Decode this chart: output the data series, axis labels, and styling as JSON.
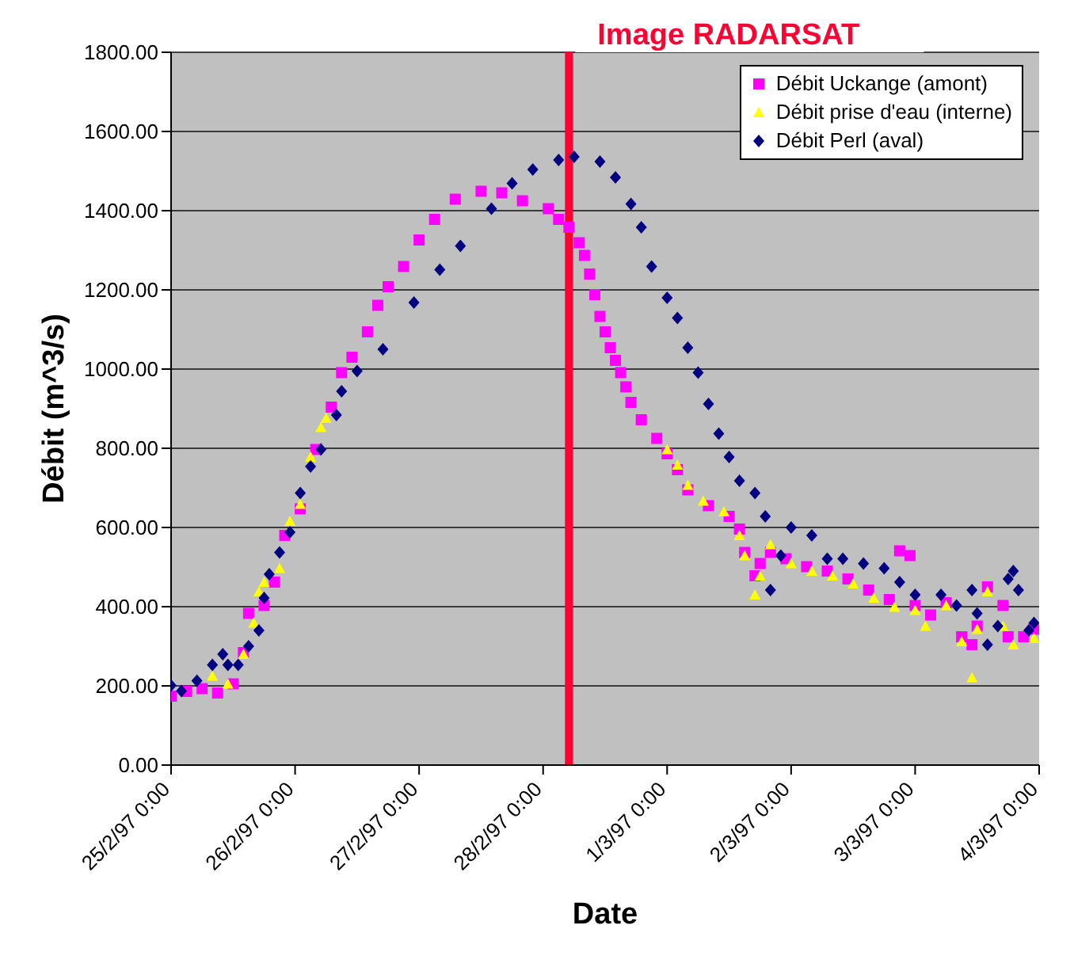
{
  "chart_data": {
    "type": "scatter",
    "xlabel": "Date",
    "ylabel": "Débit (m^3/s)",
    "xlim": [
      "1997-02-25T00:00",
      "1997-03-04T00:00"
    ],
    "xticks": [
      {
        "value": "1997-02-25T00:00",
        "label": "25/2/97 0:00"
      },
      {
        "value": "1997-02-26T00:00",
        "label": "26/2/97 0:00"
      },
      {
        "value": "1997-02-27T00:00",
        "label": "27/2/97 0:00"
      },
      {
        "value": "1997-02-28T00:00",
        "label": "28/2/97 0:00"
      },
      {
        "value": "1997-03-01T00:00",
        "label": "1/3/97 0:00"
      },
      {
        "value": "1997-03-02T00:00",
        "label": "2/3/97 0:00"
      },
      {
        "value": "1997-03-03T00:00",
        "label": "3/3/97 0:00"
      },
      {
        "value": "1997-03-04T00:00",
        "label": "4/3/97 0:00"
      }
    ],
    "ylim": [
      0,
      1800
    ],
    "yticks": [
      {
        "value": 0,
        "label": "0.00"
      },
      {
        "value": 200,
        "label": "200.00"
      },
      {
        "value": 400,
        "label": "400.00"
      },
      {
        "value": 600,
        "label": "600.00"
      },
      {
        "value": 800,
        "label": "800.00"
      },
      {
        "value": 1000,
        "label": "1000.00"
      },
      {
        "value": 1200,
        "label": "1200.00"
      },
      {
        "value": 1400,
        "label": "1400.00"
      },
      {
        "value": 1600,
        "label": "1600.00"
      },
      {
        "value": 1800,
        "label": "1800.00"
      }
    ],
    "grid": "y",
    "legend": "top right",
    "ref_lines": [
      {
        "axis": "x",
        "value": "1997-02-28T05:00",
        "label": "Image RADARSAT",
        "color": "#ff0033"
      }
    ],
    "series": [
      {
        "name": "Débit Uckange (amont)",
        "color": "#ff00ff",
        "marker": "square",
        "x": [
          "1997-02-25T00:00",
          "1997-02-25T03:00",
          "1997-02-25T06:00",
          "1997-02-25T09:00",
          "1997-02-25T12:00",
          "1997-02-25T14:00",
          "1997-02-25T15:00",
          "1997-02-25T18:00",
          "1997-02-25T20:00",
          "1997-02-25T22:00",
          "1997-02-26T01:00",
          "1997-02-26T04:00",
          "1997-02-26T07:00",
          "1997-02-26T09:00",
          "1997-02-26T11:00",
          "1997-02-26T14:00",
          "1997-02-26T16:00",
          "1997-02-26T18:00",
          "1997-02-26T21:00",
          "1997-02-27T00:00",
          "1997-02-27T03:00",
          "1997-02-27T07:00",
          "1997-02-27T12:00",
          "1997-02-27T16:00",
          "1997-02-27T20:00",
          "1997-02-28T01:00",
          "1997-02-28T03:00",
          "1997-02-28T05:00",
          "1997-02-28T07:00",
          "1997-02-28T08:00",
          "1997-02-28T09:00",
          "1997-02-28T10:00",
          "1997-02-28T11:00",
          "1997-02-28T12:00",
          "1997-02-28T13:00",
          "1997-02-28T14:00",
          "1997-02-28T15:00",
          "1997-02-28T16:00",
          "1997-02-28T17:00",
          "1997-02-28T19:00",
          "1997-02-28T22:00",
          "1997-03-01T00:00",
          "1997-03-01T02:00",
          "1997-03-01T04:00",
          "1997-03-01T08:00",
          "1997-03-01T12:00",
          "1997-03-01T14:00",
          "1997-03-01T15:00",
          "1997-03-01T17:00",
          "1997-03-01T18:00",
          "1997-03-01T20:00",
          "1997-03-01T23:00",
          "1997-03-02T03:00",
          "1997-03-02T07:00",
          "1997-03-02T11:00",
          "1997-03-02T15:00",
          "1997-03-02T19:00",
          "1997-03-02T21:00",
          "1997-03-02T23:00",
          "1997-03-03T00:00",
          "1997-03-03T03:00",
          "1997-03-03T06:00",
          "1997-03-03T09:00",
          "1997-03-03T11:00",
          "1997-03-03T12:00",
          "1997-03-03T14:00",
          "1997-03-03T17:00",
          "1997-03-03T18:00",
          "1997-03-03T21:00",
          "1997-03-03T23:00"
        ],
        "values": [
          174,
          186,
          193,
          182,
          205,
          284,
          383,
          403,
          462,
          580,
          647,
          797,
          904,
          991,
          1030,
          1094,
          1161,
          1208,
          1259,
          1326,
          1378,
          1429,
          1449,
          1445,
          1425,
          1405,
          1378,
          1358,
          1319,
          1287,
          1240,
          1188,
          1133,
          1094,
          1054,
          1022,
          991,
          955,
          916,
          872,
          825,
          786,
          746,
          695,
          655,
          628,
          596,
          537,
          478,
          509,
          537,
          521,
          501,
          490,
          470,
          442,
          418,
          541,
          529,
          403,
          379,
          410,
          324,
          304,
          351,
          450,
          403,
          324,
          324,
          343
        ]
      },
      {
        "name": "Débit prise d'eau (interne)",
        "color": "#ffff00",
        "marker": "triangle",
        "x": [
          "1997-02-25T08:00",
          "1997-02-25T11:00",
          "1997-02-25T14:00",
          "1997-02-25T16:00",
          "1997-02-25T17:00",
          "1997-02-25T18:00",
          "1997-02-25T21:00",
          "1997-02-25T23:00",
          "1997-02-26T01:00",
          "1997-02-26T03:00",
          "1997-02-26T05:00",
          "1997-02-26T06:00",
          "1997-03-01T00:00",
          "1997-03-01T02:00",
          "1997-03-01T04:00",
          "1997-03-01T07:00",
          "1997-03-01T11:00",
          "1997-03-01T14:00",
          "1997-03-01T15:00",
          "1997-03-01T17:00",
          "1997-03-01T18:00",
          "1997-03-01T20:00",
          "1997-03-02T00:00",
          "1997-03-02T04:00",
          "1997-03-02T08:00",
          "1997-03-02T12:00",
          "1997-03-02T16:00",
          "1997-03-02T20:00",
          "1997-03-03T00:00",
          "1997-03-03T02:00",
          "1997-03-03T06:00",
          "1997-03-03T09:00",
          "1997-03-03T11:00",
          "1997-03-03T12:00",
          "1997-03-03T14:00",
          "1997-03-03T17:00",
          "1997-03-03T19:00",
          "1997-03-03T23:00"
        ],
        "values": [
          225,
          205,
          280,
          359,
          438,
          462,
          497,
          616,
          659,
          778,
          853,
          876,
          797,
          758,
          707,
          667,
          640,
          580,
          529,
          430,
          478,
          557,
          509,
          490,
          478,
          458,
          422,
          399,
          391,
          351,
          403,
          312,
          221,
          343,
          438,
          351,
          304,
          320
        ]
      },
      {
        "name": "Débit Perl (aval)",
        "color": "#000080",
        "marker": "diamond",
        "x": [
          "1997-02-25T00:00",
          "1997-02-25T02:00",
          "1997-02-25T05:00",
          "1997-02-25T08:00",
          "1997-02-25T10:00",
          "1997-02-25T11:00",
          "1997-02-25T13:00",
          "1997-02-25T15:00",
          "1997-02-25T17:00",
          "1997-02-25T18:00",
          "1997-02-25T19:00",
          "1997-02-25T21:00",
          "1997-02-25T23:00",
          "1997-02-26T01:00",
          "1997-02-26T03:00",
          "1997-02-26T05:00",
          "1997-02-26T08:00",
          "1997-02-26T09:00",
          "1997-02-26T12:00",
          "1997-02-26T17:00",
          "1997-02-26T23:00",
          "1997-02-27T04:00",
          "1997-02-27T08:00",
          "1997-02-27T14:00",
          "1997-02-27T18:00",
          "1997-02-27T22:00",
          "1997-02-28T03:00",
          "1997-02-28T06:00",
          "1997-02-28T11:00",
          "1997-02-28T14:00",
          "1997-02-28T17:00",
          "1997-02-28T19:00",
          "1997-02-28T21:00",
          "1997-03-01T00:00",
          "1997-03-01T02:00",
          "1997-03-01T04:00",
          "1997-03-01T06:00",
          "1997-03-01T08:00",
          "1997-03-01T10:00",
          "1997-03-01T12:00",
          "1997-03-01T14:00",
          "1997-03-01T17:00",
          "1997-03-01T19:00",
          "1997-03-01T20:00",
          "1997-03-01T22:00",
          "1997-03-02T00:00",
          "1997-03-02T04:00",
          "1997-03-02T07:00",
          "1997-03-02T10:00",
          "1997-03-02T14:00",
          "1997-03-02T18:00",
          "1997-03-02T21:00",
          "1997-03-03T00:00",
          "1997-03-03T05:00",
          "1997-03-03T08:00",
          "1997-03-03T11:00",
          "1997-03-03T12:00",
          "1997-03-03T14:00",
          "1997-03-03T16:00",
          "1997-03-03T18:00",
          "1997-03-03T19:00",
          "1997-03-03T20:00",
          "1997-03-03T22:00",
          "1997-03-03T23:00"
        ],
        "values": [
          201,
          187,
          213,
          253,
          280,
          253,
          253,
          300,
          340,
          422,
          482,
          537,
          588,
          687,
          754,
          797,
          884,
          944,
          995,
          1050,
          1168,
          1251,
          1311,
          1405,
          1469,
          1504,
          1528,
          1536,
          1524,
          1484,
          1417,
          1358,
          1259,
          1180,
          1129,
          1054,
          991,
          912,
          837,
          778,
          718,
          687,
          628,
          442,
          529,
          600,
          580,
          521,
          521,
          509,
          497,
          462,
          430,
          430,
          403,
          442,
          383,
          304,
          351,
          470,
          490,
          442,
          340,
          359
        ]
      }
    ]
  }
}
